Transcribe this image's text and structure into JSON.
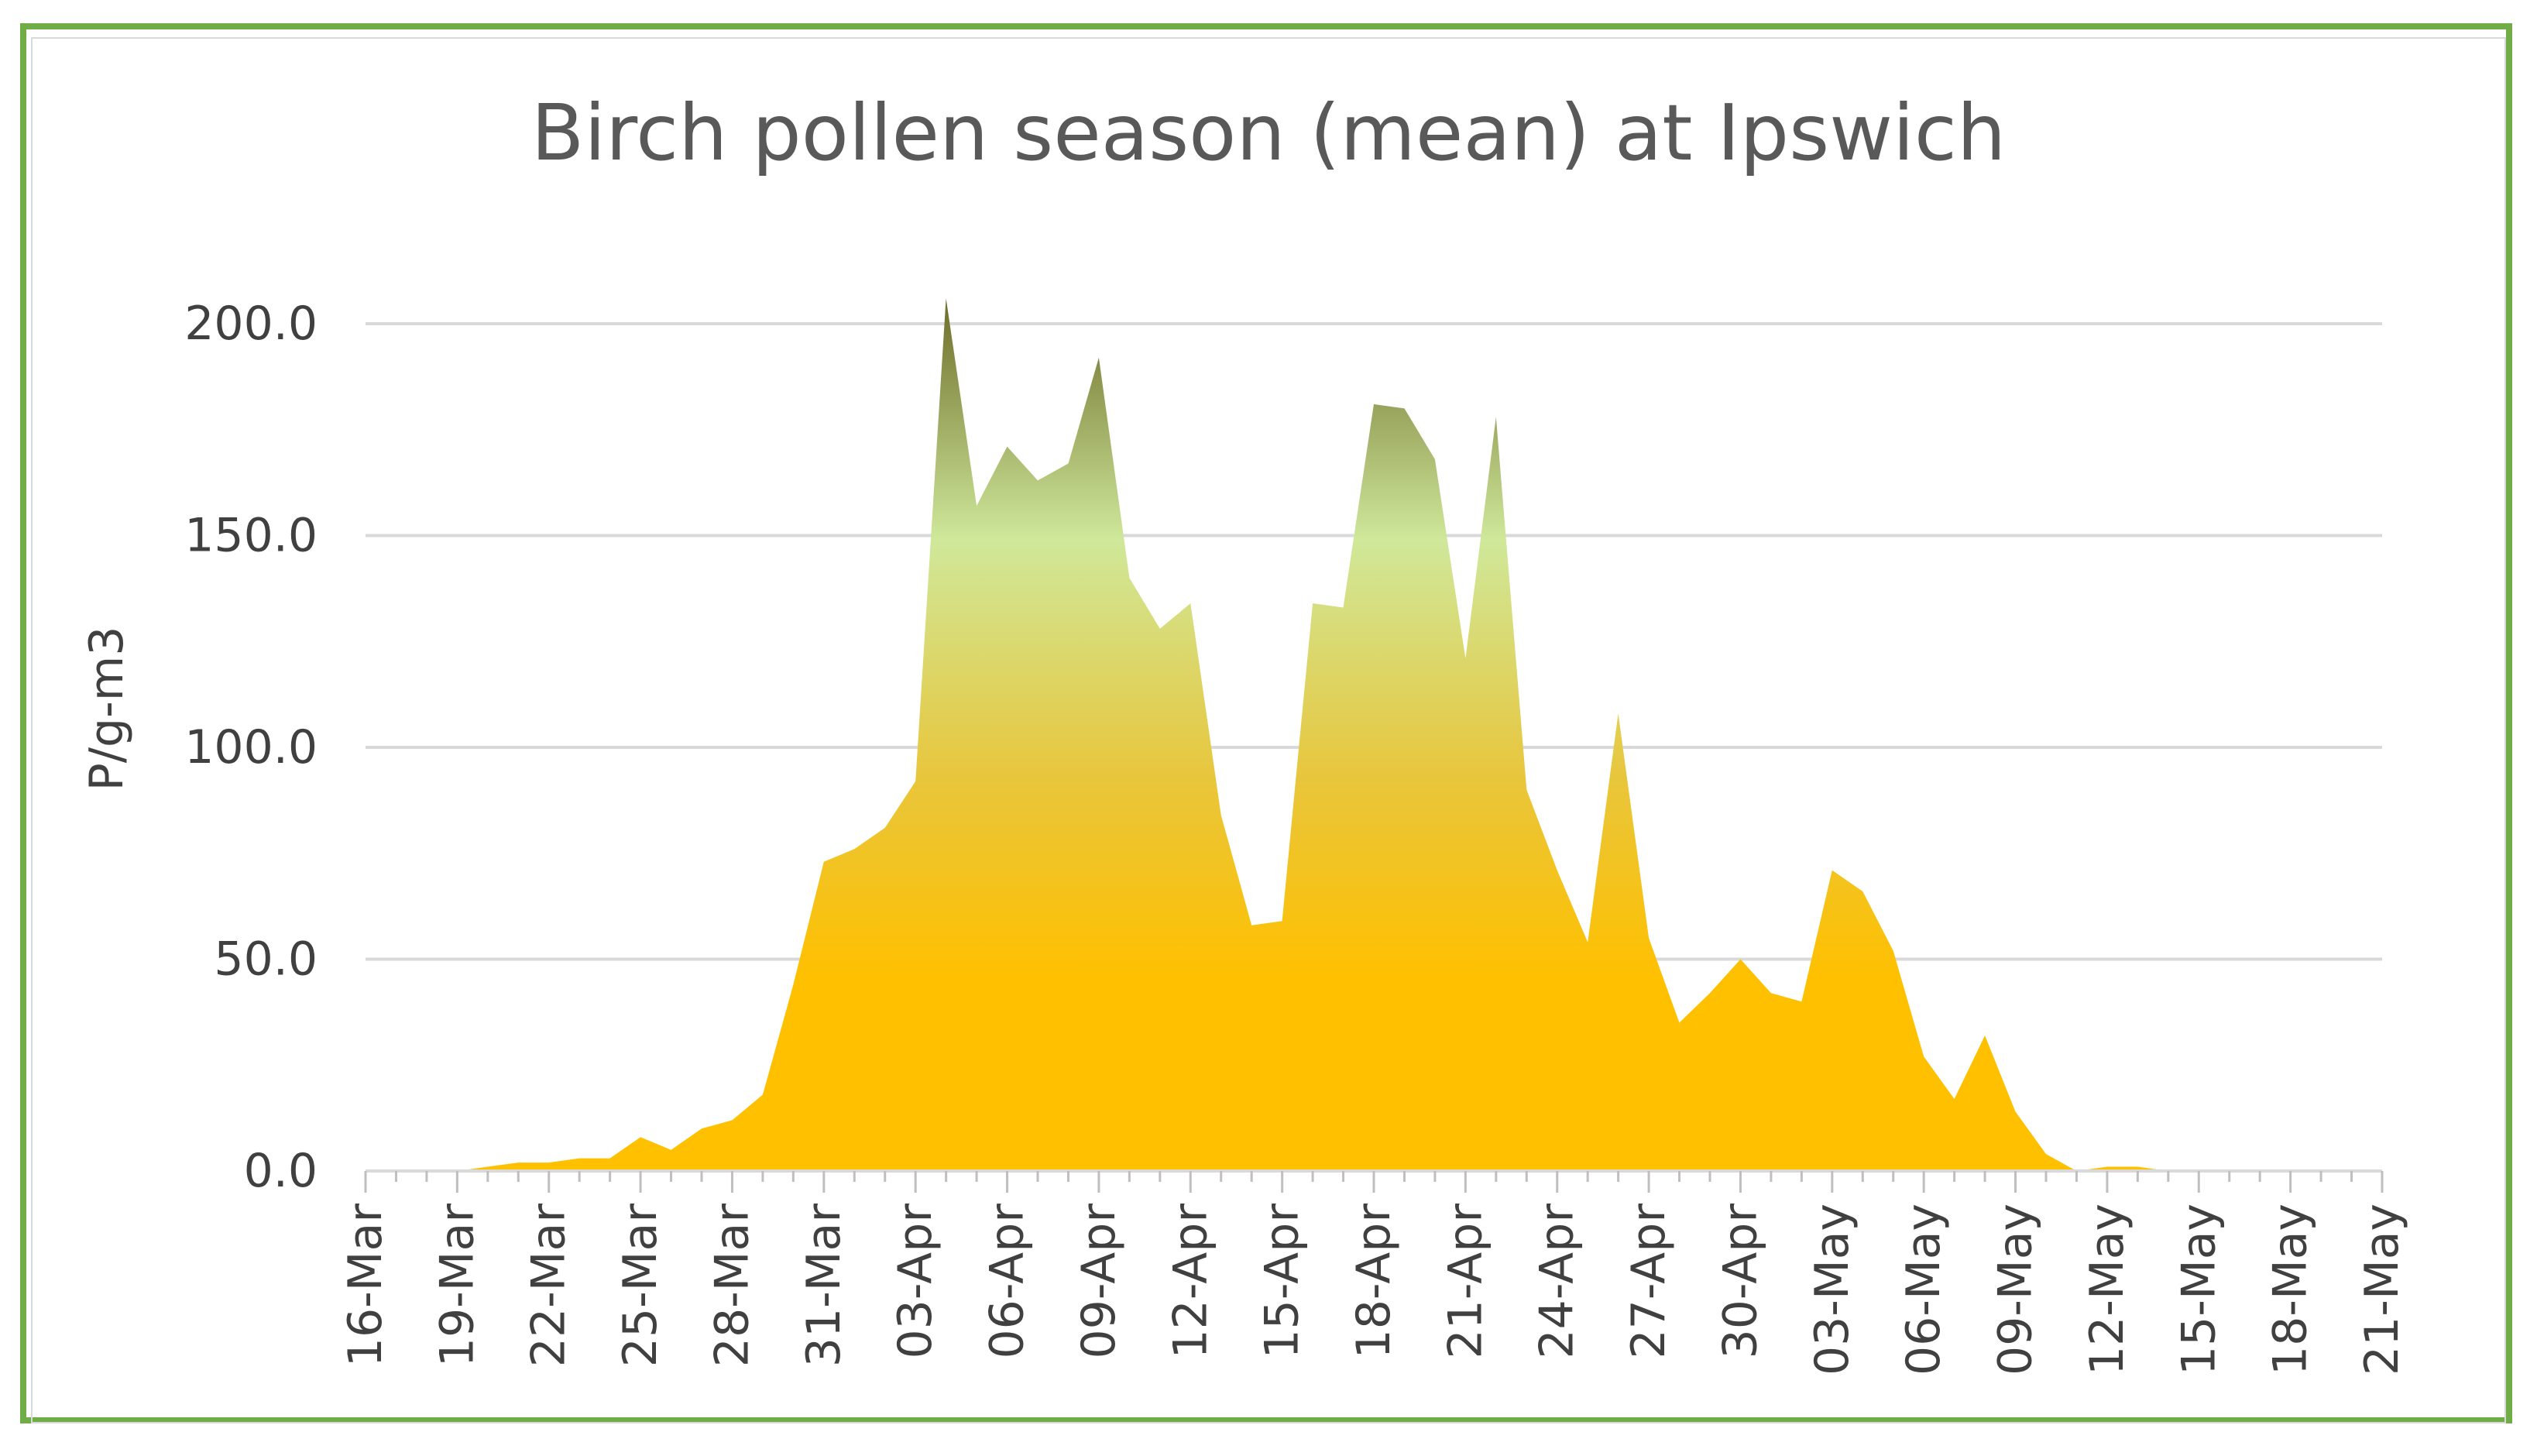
{
  "chart_data": {
    "type": "area",
    "title": "Birch pollen season (mean) at Ipswich",
    "xlabel": "",
    "ylabel": "P/g-m3",
    "ylim": [
      0,
      200
    ],
    "yticks": [
      "0.0",
      "50.0",
      "100.0",
      "150.0",
      "200.0"
    ],
    "ytick_values": [
      0,
      50,
      100,
      150,
      200
    ],
    "x_start": "16-Mar",
    "xtick_labels": [
      "16-Mar",
      "19-Mar",
      "22-Mar",
      "25-Mar",
      "28-Mar",
      "31-Mar",
      "03-Apr",
      "06-Apr",
      "09-Apr",
      "12-Apr",
      "15-Apr",
      "18-Apr",
      "21-Apr",
      "24-Apr",
      "27-Apr",
      "30-Apr",
      "03-May",
      "06-May",
      "09-May",
      "12-May",
      "15-May",
      "18-May",
      "21-May"
    ],
    "grid": true,
    "colors": {
      "fill_top": "#6b6a28",
      "fill_mid": "#cfe89a",
      "fill_low": "#e8c63c",
      "fill_bottom": "#ffc000",
      "gridline": "#d9d9d9",
      "frame": "#70ad47"
    },
    "series": [
      {
        "values": [
          0,
          0,
          0,
          0,
          1,
          2,
          2,
          3,
          3,
          8,
          5,
          10,
          12,
          18,
          44,
          73,
          76,
          81,
          92,
          206,
          157,
          171,
          163,
          167,
          192,
          140,
          128,
          134,
          84,
          58,
          59,
          134,
          133,
          181,
          180,
          168,
          121,
          178,
          90,
          71,
          54,
          108,
          55,
          35,
          42,
          50,
          42,
          40,
          71,
          66,
          52,
          27,
          17,
          32,
          14,
          4,
          0,
          1,
          1,
          0,
          0,
          0,
          0,
          0,
          0,
          0,
          0
        ]
      }
    ]
  }
}
